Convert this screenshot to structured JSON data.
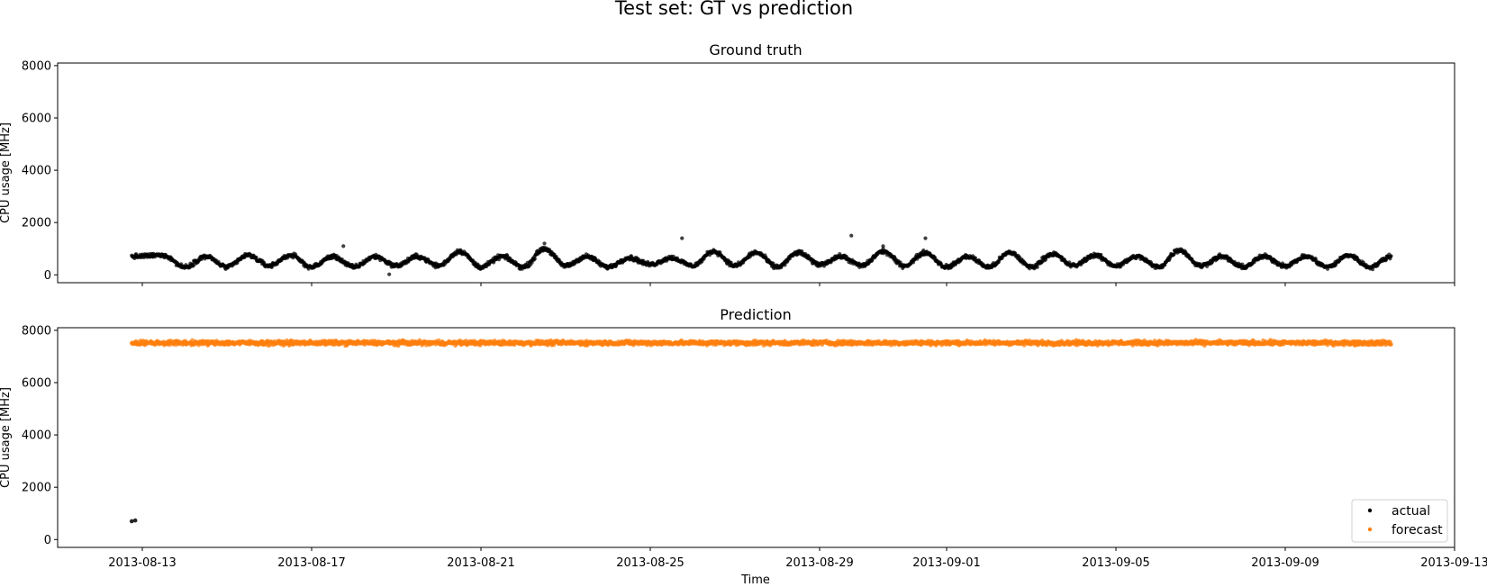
{
  "suptitle": "Test set: GT vs prediction",
  "xlabel": "Time",
  "x_tick_labels": [
    "2013-08-13",
    "2013-08-17",
    "2013-08-21",
    "2013-08-25",
    "2013-08-29",
    "2013-09-01",
    "2013-09-05",
    "2013-09-09",
    "2013-09-13"
  ],
  "colors": {
    "actual": "#000000",
    "forecast": "#ff7f0e"
  },
  "chart_data": [
    {
      "type": "scatter",
      "title": "Ground truth",
      "xlabel": "",
      "ylabel": "CPU usage [MHz]",
      "xlim": [
        "2013-08-11T00:00",
        "2013-09-13T00:00"
      ],
      "ylim": [
        -300,
        8100
      ],
      "y_ticks": [
        0,
        2000,
        4000,
        6000,
        8000
      ],
      "x_range_data": [
        "2013-08-12T18:00",
        "2013-09-11T12:00"
      ],
      "series": [
        {
          "color": "#000000",
          "approx_daily_profile_x": [
            "2013-08-12T18:00",
            "2013-08-13T12:00",
            "2013-08-14T00:00",
            "2013-08-14T12:00",
            "2013-08-15T00:00",
            "2013-08-15T12:00",
            "2013-08-16T00:00",
            "2013-08-16T12:00",
            "2013-08-17T00:00",
            "2013-08-17T12:00",
            "2013-08-18T00:00",
            "2013-08-18T12:00",
            "2013-08-19T00:00",
            "2013-08-19T12:00",
            "2013-08-20T00:00",
            "2013-08-20T12:00",
            "2013-08-21T00:00",
            "2013-08-21T12:00",
            "2013-08-22T00:00",
            "2013-08-22T12:00",
            "2013-08-23T00:00",
            "2013-08-23T12:00",
            "2013-08-24T00:00",
            "2013-08-24T12:00",
            "2013-08-25T00:00",
            "2013-08-25T12:00",
            "2013-08-26T00:00",
            "2013-08-26T12:00",
            "2013-08-27T00:00",
            "2013-08-27T12:00",
            "2013-08-28T00:00",
            "2013-08-28T12:00",
            "2013-08-29T00:00",
            "2013-08-29T12:00",
            "2013-08-30T00:00",
            "2013-08-30T12:00",
            "2013-08-31T00:00",
            "2013-08-31T12:00",
            "2013-09-01T00:00",
            "2013-09-01T12:00",
            "2013-09-02T00:00",
            "2013-09-02T12:00",
            "2013-09-03T00:00",
            "2013-09-03T12:00",
            "2013-09-04T00:00",
            "2013-09-04T12:00",
            "2013-09-05T00:00",
            "2013-09-05T12:00",
            "2013-09-06T00:00",
            "2013-09-06T12:00",
            "2013-09-07T00:00",
            "2013-09-07T12:00",
            "2013-09-08T00:00",
            "2013-09-08T12:00",
            "2013-09-09T00:00",
            "2013-09-09T12:00",
            "2013-09-10T00:00",
            "2013-09-10T12:00",
            "2013-09-11T00:00",
            "2013-09-11T12:00"
          ],
          "approx_daily_profile_y": [
            700,
            750,
            300,
            700,
            300,
            750,
            350,
            750,
            300,
            700,
            300,
            700,
            350,
            700,
            350,
            900,
            300,
            700,
            300,
            1000,
            350,
            700,
            300,
            650,
            400,
            650,
            350,
            900,
            350,
            850,
            300,
            850,
            400,
            700,
            350,
            900,
            350,
            850,
            300,
            700,
            300,
            850,
            300,
            800,
            350,
            750,
            350,
            700,
            300,
            950,
            350,
            700,
            300,
            700,
            350,
            700,
            300,
            750,
            300,
            700
          ],
          "outliers_x": [
            "2013-08-17T18:00",
            "2013-08-18T20:00",
            "2013-08-22T12:00",
            "2013-08-25T18:00",
            "2013-08-29T18:00",
            "2013-08-30T12:00",
            "2013-08-31T12:00"
          ],
          "outliers_y": [
            1100,
            20,
            1200,
            1400,
            1500,
            1100,
            1400
          ]
        }
      ]
    },
    {
      "type": "scatter",
      "title": "Prediction",
      "xlabel": "Time",
      "ylabel": "CPU usage [MHz]",
      "xlim": [
        "2013-08-11T00:00",
        "2013-09-13T00:00"
      ],
      "ylim": [
        -300,
        8100
      ],
      "y_ticks": [
        0,
        2000,
        4000,
        6000,
        8000
      ],
      "legend": {
        "placement": "lower-right",
        "entries": [
          "actual",
          "forecast"
        ]
      },
      "series": [
        {
          "name": "actual",
          "color": "#000000",
          "x": [
            "2013-08-12T18:00",
            "2013-08-12T20:00"
          ],
          "y": [
            700,
            730
          ]
        },
        {
          "name": "forecast",
          "color": "#ff7f0e",
          "x_range": [
            "2013-08-12T18:00",
            "2013-09-11T12:00"
          ],
          "y_level": 7520,
          "y_spread": [
            7400,
            7650
          ]
        }
      ]
    }
  ]
}
